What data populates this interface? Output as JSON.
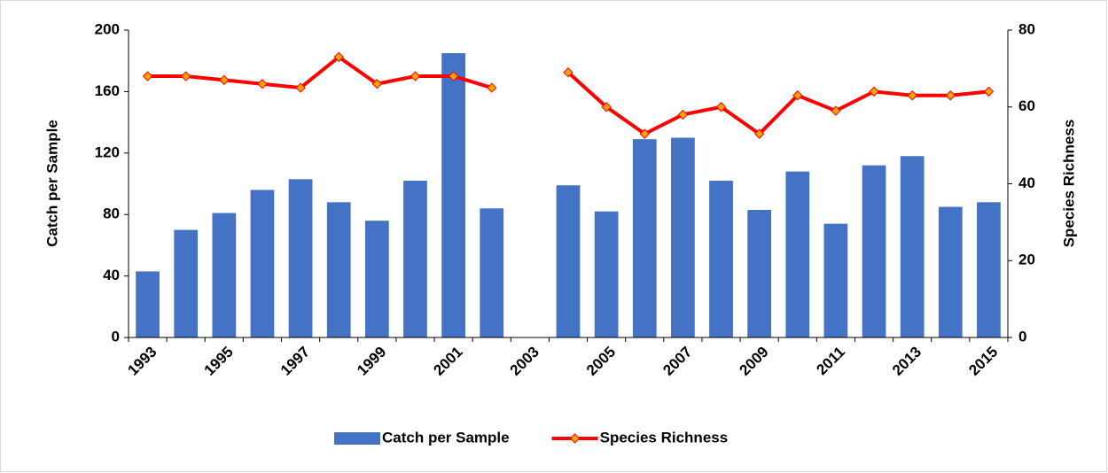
{
  "chart_data": {
    "type": "bar-line",
    "categories": [
      "1993",
      null,
      "1995",
      null,
      "1997",
      null,
      "1999",
      null,
      "2001",
      null,
      "2003",
      null,
      "2005",
      null,
      "2007",
      null,
      "2009",
      null,
      "2011",
      null,
      "2013",
      null,
      "2015"
    ],
    "series": [
      {
        "name": "Catch per Sample",
        "type": "bar",
        "color": "#4472c4",
        "values": [
          43,
          70,
          81,
          96,
          103,
          88,
          76,
          102,
          185,
          84,
          null,
          99,
          82,
          129,
          130,
          102,
          83,
          108,
          74,
          112,
          118,
          85,
          88
        ]
      },
      {
        "name": "Species Richness",
        "type": "line",
        "axis": "y2",
        "color": "#ff0000",
        "marker_color": "#ffa500",
        "values": [
          68,
          68,
          67,
          66,
          65,
          73,
          66,
          68,
          68,
          65,
          null,
          69,
          60,
          53,
          58,
          60,
          53,
          63,
          59,
          64,
          63,
          63,
          64
        ]
      }
    ],
    "ylabel": "Catch per Sample",
    "y2label": "Species Richness",
    "ylim": [
      0,
      200
    ],
    "yticks": [
      0,
      40,
      80,
      120,
      160,
      200
    ],
    "y2lim": [
      0,
      80
    ],
    "y2ticks": [
      0,
      20,
      40,
      60,
      80
    ],
    "legend": "bottom"
  }
}
